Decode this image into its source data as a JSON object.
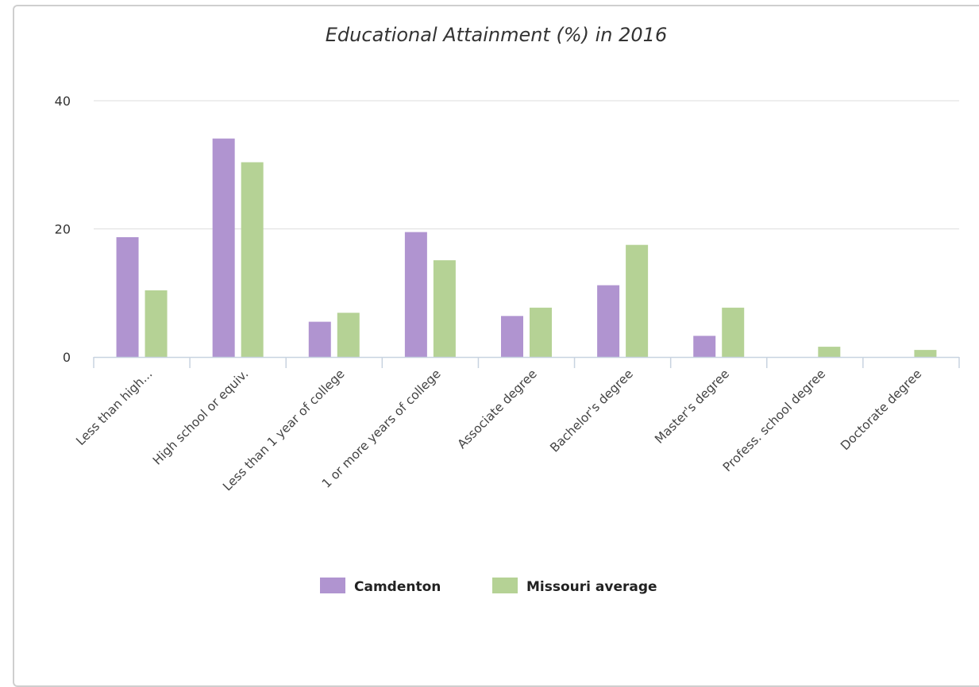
{
  "chart_data": {
    "type": "bar",
    "title": "Educational Attainment (%) in 2016",
    "xlabel": "",
    "ylabel": "",
    "ylim": [
      0,
      40
    ],
    "yticks": [
      0,
      20,
      40
    ],
    "grid": true,
    "legend_position": "bottom",
    "categories": [
      "Less than high...",
      "High school or equiv.",
      "Less than 1 year of college",
      "1 or more years of college",
      "Associate degree",
      "Bachelor's degree",
      "Master's degree",
      "Profess. school degree",
      "Doctorate degree"
    ],
    "series": [
      {
        "name": "Camdenton",
        "color": "#b094d0",
        "values": [
          18.7,
          34.1,
          5.5,
          19.5,
          6.4,
          11.2,
          3.3,
          0,
          0
        ]
      },
      {
        "name": "Missouri average",
        "color": "#b5d295",
        "values": [
          10.4,
          30.4,
          6.9,
          15.1,
          7.7,
          17.5,
          7.7,
          1.6,
          1.1
        ]
      }
    ]
  }
}
